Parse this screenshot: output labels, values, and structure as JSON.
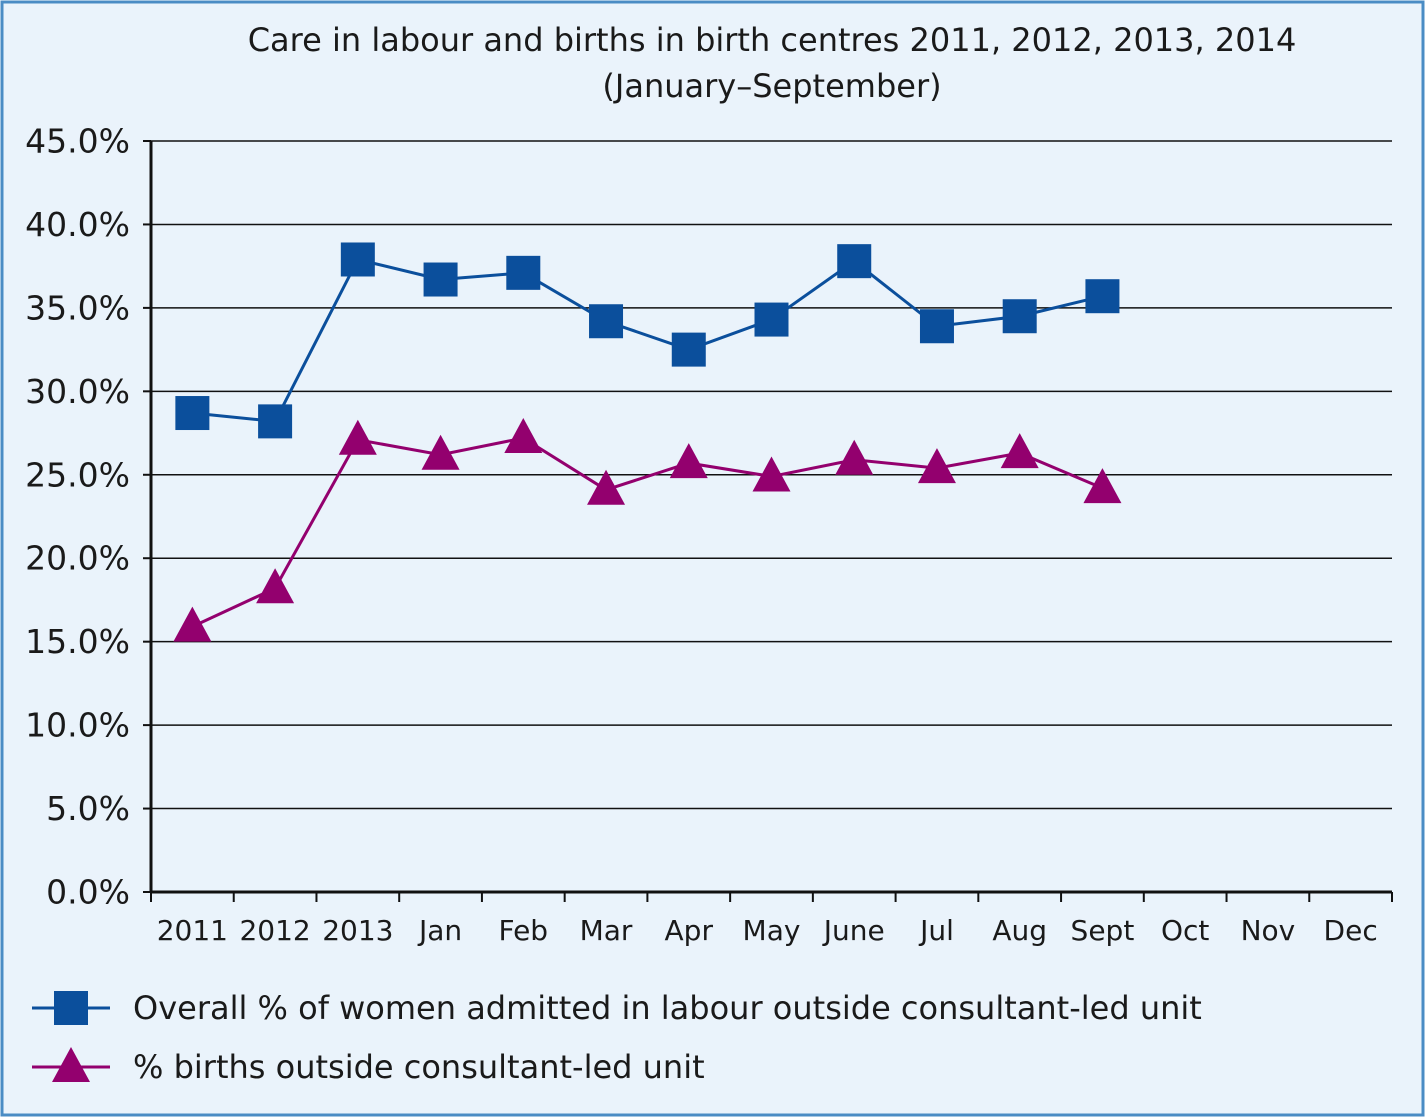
{
  "chart_data": {
    "type": "line",
    "title": "Care in labour and births in birth centres 2011, 2012, 2013, 2014",
    "subtitle": "(January–September)",
    "categories": [
      "2011",
      "2012",
      "2013",
      "Jan",
      "Feb",
      "Mar",
      "Apr",
      "May",
      "June",
      "Jul",
      "Aug",
      "Sept",
      "Oct",
      "Nov",
      "Dec"
    ],
    "series": [
      {
        "name": "Overall % of women admitted in labour outside consultant-led unit",
        "color": "#0b4f9c",
        "marker": "square",
        "values": [
          28.7,
          28.2,
          37.9,
          36.7,
          37.1,
          34.2,
          32.5,
          34.3,
          37.8,
          33.9,
          34.5,
          35.7,
          null,
          null,
          null
        ]
      },
      {
        "name": "% births outside consultant-led unit",
        "color": "#93006e",
        "marker": "triangle",
        "values": [
          15.9,
          18.2,
          27.1,
          26.2,
          27.2,
          24.1,
          25.7,
          24.9,
          25.9,
          25.4,
          26.3,
          24.2,
          null,
          null,
          null
        ]
      }
    ],
    "ylim": [
      0,
      45
    ],
    "yticks": [
      {
        "value": 0,
        "label": "0.0%"
      },
      {
        "value": 5,
        "label": "5.0%"
      },
      {
        "value": 10,
        "label": "10.0%"
      },
      {
        "value": 15,
        "label": "15.0%"
      },
      {
        "value": 20,
        "label": "20.0%"
      },
      {
        "value": 25,
        "label": "25.0%"
      },
      {
        "value": 30,
        "label": "30.0%"
      },
      {
        "value": 35,
        "label": "35.0%"
      },
      {
        "value": 40,
        "label": "40.0%"
      },
      {
        "value": 45,
        "label": "45.0%"
      }
    ],
    "grid": true,
    "legend": "bottom"
  }
}
